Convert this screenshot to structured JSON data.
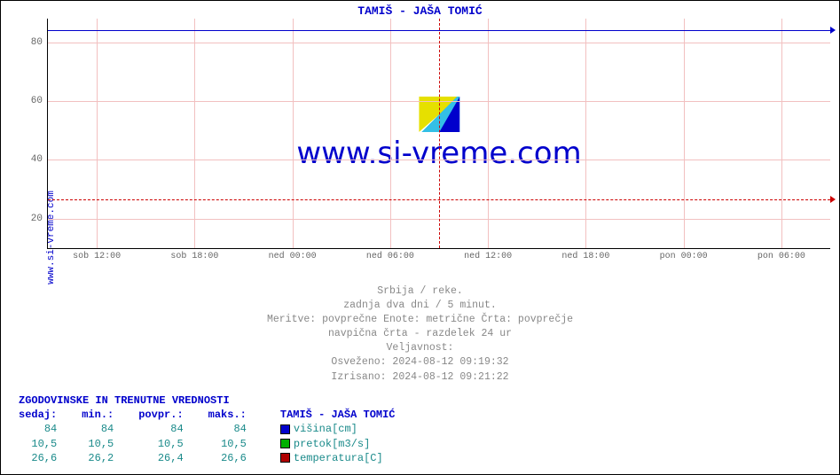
{
  "chart": {
    "title": "TAMIŠ -  JAŠA TOMIĆ",
    "y_axis_label": "www.si-vreme.com",
    "watermark_text": "www.si-vreme.com",
    "ylim": [
      10,
      88
    ],
    "yticks": [
      20,
      40,
      60,
      80
    ],
    "xticks": [
      "sob 12:00",
      "sob 18:00",
      "ned 00:00",
      "ned 06:00",
      "ned 12:00",
      "ned 18:00",
      "pon 00:00",
      "pon 06:00"
    ],
    "xtick_positions_pct": [
      6.25,
      18.75,
      31.25,
      43.75,
      56.25,
      68.75,
      81.25,
      93.75
    ],
    "day_divider_pct": 50,
    "series": {
      "height_value": 84,
      "height_color": "#0000cc",
      "temp_value": 26.6,
      "temp_color": "#cc0000"
    },
    "grid_color": "#f2c0c0",
    "background": "#ffffff"
  },
  "meta": {
    "line1": "Srbija / reke.",
    "line2": "zadnja dva dni / 5 minut.",
    "line3": "Meritve: povprečne  Enote: metrične  Črta: povprečje",
    "line4": "navpična črta - razdelek 24 ur",
    "line5": "Veljavnost:",
    "line6": "Osveženo: 2024-08-12 09:19:32",
    "line7": "Izrisano: 2024-08-12 09:21:22"
  },
  "stats": {
    "title": "ZGODOVINSKE IN TRENUTNE VREDNOSTI",
    "headers": {
      "now": "sedaj:",
      "min": "min.:",
      "avg": "povpr.:",
      "max": "maks.:"
    },
    "legend_title": "TAMIŠ -  JAŠA TOMIĆ",
    "rows": [
      {
        "now": "84",
        "min": "84",
        "avg": "84",
        "max": "84",
        "swatch": "#0000cc",
        "label": "višina[cm]"
      },
      {
        "now": "10,5",
        "min": "10,5",
        "avg": "10,5",
        "max": "10,5",
        "swatch": "#00b000",
        "label": "pretok[m3/s]"
      },
      {
        "now": "26,6",
        "min": "26,2",
        "avg": "26,4",
        "max": "26,6",
        "swatch": "#b00000",
        "label": "temperatura[C]"
      }
    ]
  }
}
